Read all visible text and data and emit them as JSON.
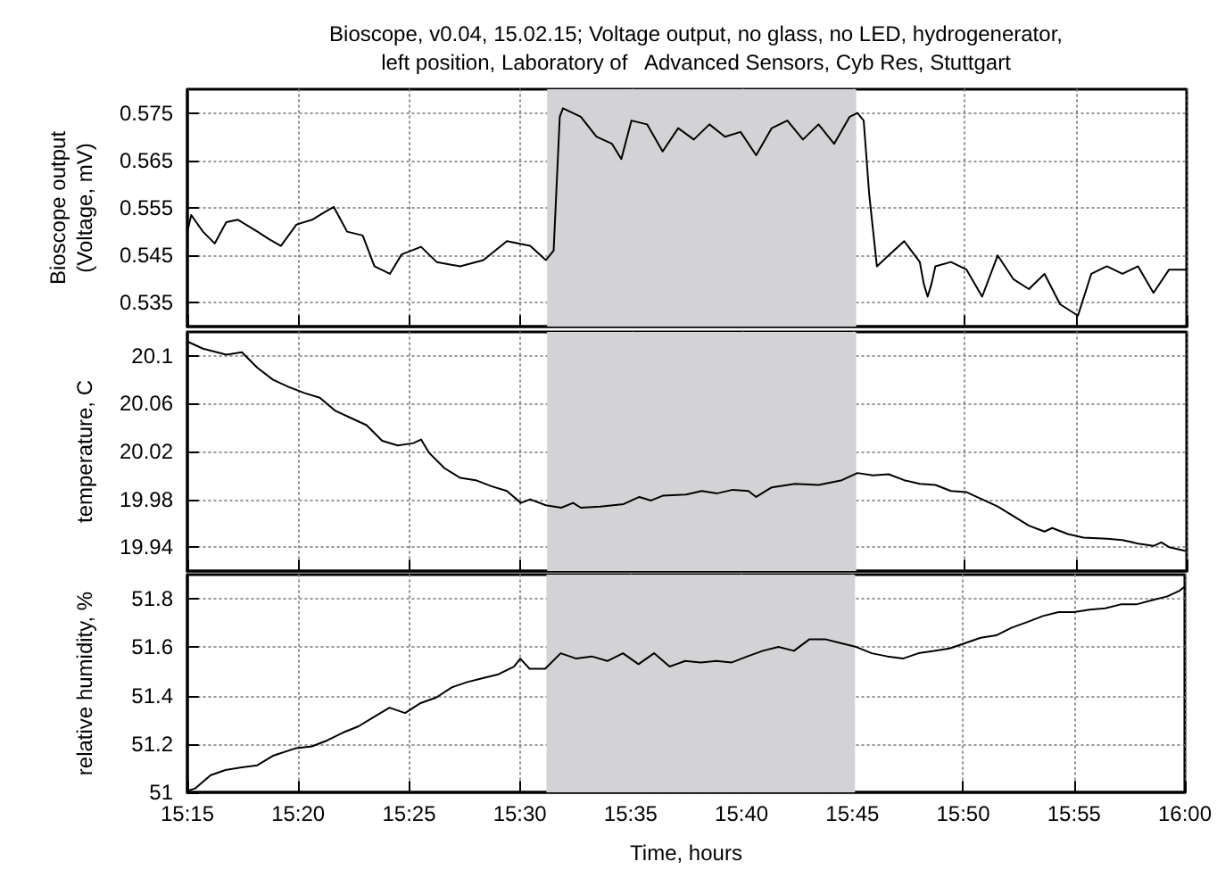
{
  "chart_data": [
    {
      "type": "line",
      "title": "Bioscope, v0.04, 15.02.15; Voltage output, no glass, no LED, hydrogenerator,\nleft position, Laboratory of   Advanced Sensors, Cyb Res, Stuttgart",
      "ylabel": "Bioscope output\n(Voltage, mV)",
      "grid": true,
      "marker": "none",
      "line_style": "solid",
      "tick_labels": "y",
      "xlim": [
        15.25,
        16
      ],
      "xticks": [
        {
          "value": 15.25,
          "label": null
        },
        {
          "value": 15.3333,
          "label": null
        },
        {
          "value": 15.4167,
          "label": null
        },
        {
          "value": 15.5,
          "label": null
        },
        {
          "value": 15.5833,
          "label": null
        },
        {
          "value": 15.6667,
          "label": null
        },
        {
          "value": 15.75,
          "label": null
        },
        {
          "value": 15.8333,
          "label": null
        },
        {
          "value": 15.9167,
          "label": null
        },
        {
          "value": 16,
          "label": null
        }
      ],
      "ylim": [
        0.53,
        0.58
      ],
      "yticks": [
        0.535,
        0.545,
        0.555,
        0.565,
        0.575
      ],
      "bands": [
        {
          "axis": "x",
          "from": 15.52,
          "to": 15.752,
          "color": "#d3d3d6"
        }
      ],
      "series": [
        {
          "color": "#000000",
          "x": [
            15.25,
            15.2529,
            15.2617,
            15.2705,
            15.2792,
            15.288,
            15.3026,
            15.3114,
            15.3202,
            15.3319,
            15.3436,
            15.3523,
            15.3599,
            15.3699,
            15.3816,
            15.3904,
            15.402,
            15.4108,
            15.4254,
            15.4371,
            15.4547,
            15.4722,
            15.4898,
            15.5073,
            15.519,
            15.5249,
            15.5295,
            15.5319,
            15.5453,
            15.557,
            15.5687,
            15.5757,
            15.5833,
            15.595,
            15.6067,
            15.6184,
            15.6301,
            15.6418,
            15.6535,
            15.6652,
            15.6769,
            15.6886,
            15.7003,
            15.712,
            15.7237,
            15.7354,
            15.7471,
            15.7529,
            15.7576,
            15.7617,
            15.7675,
            15.7763,
            15.788,
            15.7997,
            15.8027,
            15.8056,
            15.8085,
            15.8114,
            15.8231,
            15.8348,
            15.8465,
            15.8582,
            15.8699,
            15.8816,
            15.8933,
            15.905,
            15.9184,
            15.9284,
            15.9401,
            15.9518,
            15.9635,
            15.9751,
            15.9868,
            16.0
          ],
          "values": [
            0.55,
            0.5535,
            0.55,
            0.5475,
            0.552,
            0.5525,
            0.55,
            0.5484,
            0.547,
            0.5515,
            0.5525,
            0.554,
            0.5552,
            0.55,
            0.5492,
            0.5427,
            0.5411,
            0.5452,
            0.5468,
            0.5436,
            0.5427,
            0.544,
            0.548,
            0.547,
            0.544,
            0.546,
            0.5742,
            0.576,
            0.5742,
            0.57,
            0.5685,
            0.5653,
            0.5734,
            0.5726,
            0.5669,
            0.5718,
            0.5694,
            0.5726,
            0.57,
            0.571,
            0.5661,
            0.5718,
            0.5734,
            0.5694,
            0.5726,
            0.5685,
            0.5742,
            0.575,
            0.5734,
            0.558,
            0.5427,
            0.545,
            0.548,
            0.5436,
            0.539,
            0.5363,
            0.539,
            0.5427,
            0.5436,
            0.542,
            0.5363,
            0.545,
            0.54,
            0.5379,
            0.5411,
            0.5347,
            0.5323,
            0.5411,
            0.5427,
            0.5411,
            0.5427,
            0.5371,
            0.542,
            0.542
          ]
        }
      ]
    },
    {
      "type": "line",
      "ylabel": "temperature, C",
      "grid": true,
      "marker": "none",
      "line_style": "solid",
      "tick_labels": "y",
      "xlim": [
        15.25,
        16
      ],
      "xticks": [
        {
          "value": 15.25,
          "label": null
        },
        {
          "value": 15.3333,
          "label": null
        },
        {
          "value": 15.4167,
          "label": null
        },
        {
          "value": 15.5,
          "label": null
        },
        {
          "value": 15.5833,
          "label": null
        },
        {
          "value": 15.6667,
          "label": null
        },
        {
          "value": 15.75,
          "label": null
        },
        {
          "value": 15.8333,
          "label": null
        },
        {
          "value": 15.9167,
          "label": null
        },
        {
          "value": 16,
          "label": null
        }
      ],
      "ylim": [
        19.92,
        20.12
      ],
      "yticks": [
        19.94,
        19.98,
        20.02,
        20.06,
        20.1
      ],
      "bands": [
        {
          "axis": "x",
          "from": 15.52,
          "to": 15.752,
          "color": "#d3d3d6"
        }
      ],
      "series": [
        {
          "color": "#000000",
          "x": [
            15.25,
            15.2617,
            15.2792,
            15.2909,
            15.3026,
            15.3143,
            15.326,
            15.3377,
            15.3494,
            15.3611,
            15.3728,
            15.3845,
            15.3962,
            15.4079,
            15.4196,
            15.4254,
            15.4313,
            15.443,
            15.4547,
            15.4664,
            15.4781,
            15.4898,
            15.5003,
            15.5073,
            15.519,
            15.5307,
            15.5395,
            15.5453,
            15.5599,
            15.5775,
            15.5892,
            15.598,
            15.6067,
            15.6243,
            15.636,
            15.6477,
            15.6594,
            15.6711,
            15.6769,
            15.6886,
            15.7061,
            15.7237,
            15.7412,
            15.7529,
            15.7646,
            15.7763,
            15.788,
            15.7997,
            15.8114,
            15.8231,
            15.8348,
            15.8465,
            15.8582,
            15.8699,
            15.8816,
            15.8933,
            15.8991,
            15.9108,
            15.9225,
            15.9401,
            15.9518,
            15.9635,
            15.9751,
            15.981,
            15.9868,
            15.9985
          ],
          "values": [
            20.112,
            20.106,
            20.101,
            20.103,
            20.09,
            20.08,
            20.074,
            20.069,
            20.065,
            20.054,
            20.048,
            20.042,
            20.029,
            20.025,
            20.027,
            20.03,
            20.019,
            20.006,
            19.998,
            19.996,
            19.991,
            19.987,
            19.977,
            19.98,
            19.975,
            19.973,
            19.977,
            19.973,
            19.974,
            19.976,
            19.982,
            19.979,
            19.983,
            19.984,
            19.987,
            19.985,
            19.988,
            19.987,
            19.982,
            19.99,
            19.993,
            19.992,
            19.996,
            20.002,
            20.0,
            20.001,
            19.996,
            19.993,
            19.992,
            19.987,
            19.986,
            19.98,
            19.974,
            19.966,
            19.958,
            19.953,
            19.956,
            19.951,
            19.948,
            19.947,
            19.946,
            19.943,
            19.941,
            19.944,
            19.94,
            19.937
          ]
        }
      ]
    },
    {
      "type": "line",
      "xlabel": "Time, hours",
      "ylabel": "relative humidity, %",
      "grid": true,
      "marker": "none",
      "line_style": "solid",
      "xlim": [
        15.25,
        16
      ],
      "xticks": [
        {
          "value": 15.25,
          "label": "15:15"
        },
        {
          "value": 15.3333,
          "label": "15:20"
        },
        {
          "value": 15.4167,
          "label": "15:25"
        },
        {
          "value": 15.5,
          "label": "15:30"
        },
        {
          "value": 15.5833,
          "label": "15:35"
        },
        {
          "value": 15.6667,
          "label": "15:40"
        },
        {
          "value": 15.75,
          "label": "15:45"
        },
        {
          "value": 15.8333,
          "label": "15:50"
        },
        {
          "value": 15.9167,
          "label": "15:55"
        },
        {
          "value": 16,
          "label": "16:00"
        }
      ],
      "ylim": [
        51,
        51.9
      ],
      "yticks": [
        51,
        51.2,
        51.4,
        51.6,
        51.8
      ],
      "bands": [
        {
          "axis": "x",
          "from": 15.52,
          "to": 15.752,
          "color": "#d3d3d6"
        }
      ],
      "series": [
        {
          "color": "#000000",
          "x": [
            15.25,
            15.2558,
            15.2675,
            15.2792,
            15.2909,
            15.3026,
            15.3143,
            15.3319,
            15.3436,
            15.3553,
            15.367,
            15.3787,
            15.3904,
            15.402,
            15.4137,
            15.4254,
            15.4371,
            15.4488,
            15.4605,
            15.4722,
            15.4839,
            15.4956,
            15.5003,
            15.5073,
            15.519,
            15.5307,
            15.5424,
            15.5541,
            15.5658,
            15.5775,
            15.5892,
            15.6009,
            15.6126,
            15.6243,
            15.636,
            15.6477,
            15.6594,
            15.6711,
            15.6827,
            15.6944,
            15.7061,
            15.7178,
            15.7295,
            15.7412,
            15.7529,
            15.7646,
            15.7763,
            15.788,
            15.7997,
            15.8114,
            15.8231,
            15.8348,
            15.8465,
            15.8582,
            15.8699,
            15.8816,
            15.8933,
            15.905,
            15.9167,
            15.9284,
            15.9401,
            15.9518,
            15.9635,
            15.9751,
            15.9868,
            15.9956,
            16.0
          ],
          "values": [
            51.006,
            51.016,
            51.071,
            51.093,
            51.103,
            51.112,
            51.151,
            51.183,
            51.19,
            51.215,
            51.247,
            51.273,
            51.312,
            51.35,
            51.328,
            51.369,
            51.392,
            51.434,
            51.456,
            51.472,
            51.488,
            51.52,
            51.553,
            51.511,
            51.511,
            51.575,
            51.553,
            51.562,
            51.543,
            51.575,
            51.53,
            51.575,
            51.52,
            51.543,
            51.537,
            51.543,
            51.537,
            51.562,
            51.585,
            51.601,
            51.585,
            51.633,
            51.633,
            51.617,
            51.601,
            51.575,
            51.562,
            51.553,
            51.575,
            51.585,
            51.595,
            51.617,
            51.639,
            51.649,
            51.681,
            51.704,
            51.729,
            51.745,
            51.745,
            51.755,
            51.761,
            51.777,
            51.777,
            51.794,
            51.81,
            51.832,
            51.851
          ]
        }
      ]
    }
  ]
}
